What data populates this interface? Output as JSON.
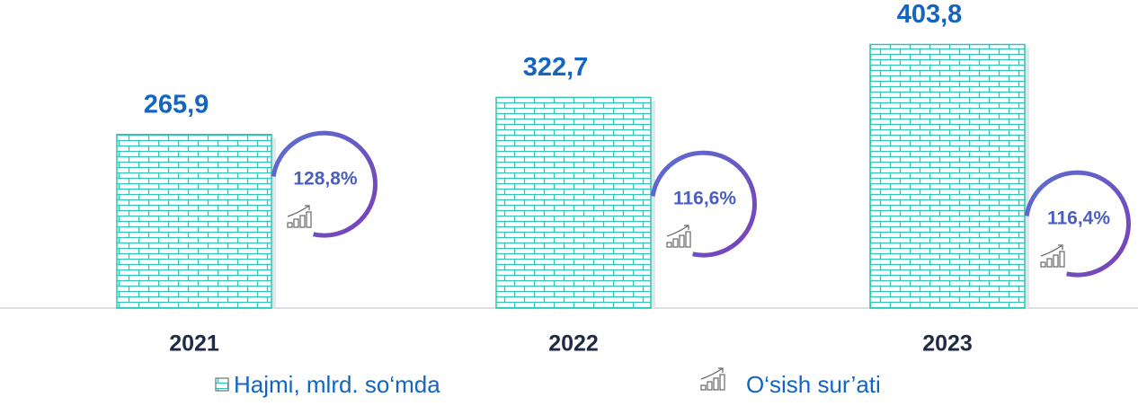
{
  "chart_data": {
    "type": "bar",
    "categories": [
      "2021",
      "2022",
      "2023"
    ],
    "series": [
      {
        "name": "Hajmi, mlrd. so‘mda",
        "color": "#2ec4b6",
        "values": [
          265.9,
          322.7,
          403.8
        ],
        "value_labels": [
          "265,9",
          "322,7",
          "403,8"
        ]
      },
      {
        "name": "O‘sish sur’ati",
        "color": "#4b5fbf",
        "values": [
          128.8,
          116.6,
          116.4
        ],
        "value_labels": [
          "128,8%",
          "116,6%",
          "116,4%"
        ]
      }
    ],
    "ylim": [
      0,
      410
    ]
  }
}
